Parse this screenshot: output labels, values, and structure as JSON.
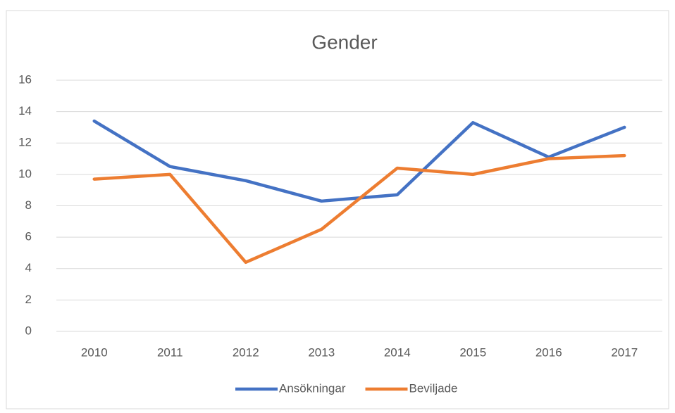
{
  "chart_data": {
    "type": "line",
    "title": "Gender",
    "categories": [
      "2010",
      "2011",
      "2012",
      "2013",
      "2014",
      "2015",
      "2016",
      "2017"
    ],
    "series": [
      {
        "name": "Ansökningar",
        "color": "#4472c4",
        "values": [
          13.4,
          10.5,
          9.6,
          8.3,
          8.7,
          13.3,
          11.1,
          13.0
        ]
      },
      {
        "name": "Beviljade",
        "color": "#ed7d31",
        "values": [
          9.7,
          10.0,
          4.4,
          6.5,
          10.4,
          10.0,
          11.0,
          11.2
        ]
      }
    ],
    "ylim": [
      0,
      16
    ],
    "yticks": [
      0,
      2,
      4,
      6,
      8,
      10,
      12,
      14,
      16
    ],
    "grid": true,
    "legend": "bottom"
  }
}
